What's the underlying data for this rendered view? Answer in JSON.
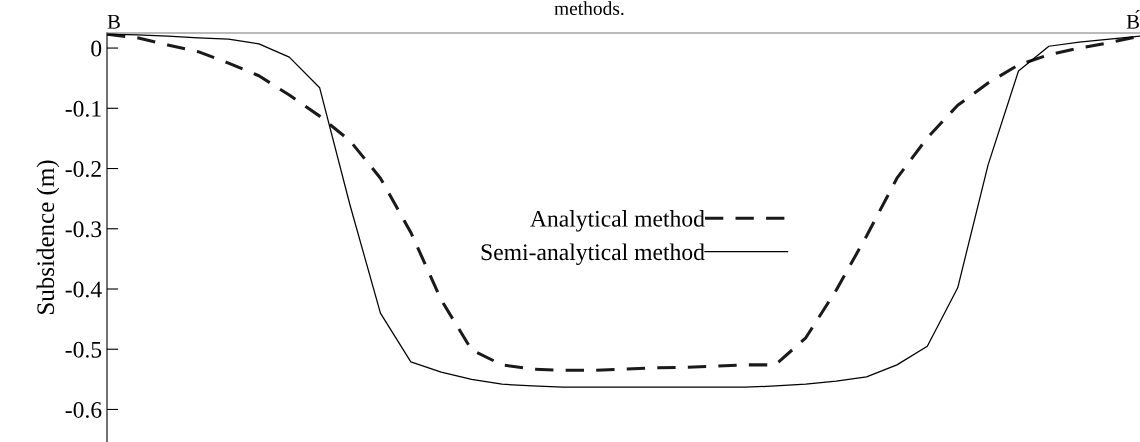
{
  "chart_data": {
    "type": "line",
    "title": "methods.",
    "ylabel": "Subsidence (m)",
    "categories": [
      null,
      null,
      null,
      null,
      null,
      null,
      null,
      null,
      null,
      null,
      null,
      null,
      null,
      null,
      null,
      null,
      null,
      null,
      null,
      null,
      null,
      null,
      null,
      null,
      null,
      null,
      null,
      null,
      null,
      null,
      null,
      null,
      null,
      null,
      null
    ],
    "series": [
      {
        "name": "Analytical method",
        "color": "#1a1a1a",
        "line_style": "dashed",
        "values": [
          0.023,
          0.017,
          0.005,
          -0.006,
          -0.025,
          -0.046,
          -0.078,
          -0.113,
          -0.154,
          -0.216,
          -0.306,
          -0.418,
          -0.501,
          -0.526,
          -0.533,
          -0.535,
          -0.535,
          -0.533,
          -0.531,
          -0.53,
          -0.528,
          -0.526,
          -0.526,
          -0.481,
          -0.402,
          -0.312,
          -0.216,
          -0.149,
          -0.095,
          -0.058,
          -0.028,
          -0.011,
          0.0,
          0.009,
          0.02
        ]
      },
      {
        "name": "Semi-analytical method",
        "color": "#000000",
        "line_style": "solid",
        "values": [
          0.023,
          0.022,
          0.02,
          0.017,
          0.015,
          0.007,
          -0.015,
          -0.066,
          -0.261,
          -0.44,
          -0.521,
          -0.538,
          -0.55,
          -0.558,
          -0.561,
          -0.563,
          -0.563,
          -0.563,
          -0.563,
          -0.563,
          -0.563,
          -0.563,
          -0.561,
          -0.558,
          -0.553,
          -0.546,
          -0.526,
          -0.495,
          -0.398,
          -0.194,
          -0.038,
          0.003,
          0.01,
          0.015,
          0.02
        ]
      }
    ],
    "ylim": [
      -0.654,
      0.025
    ],
    "yticks": [
      0,
      {
        "value": -0.1,
        "label": "-0.1"
      },
      {
        "value": -0.2,
        "label": "-0.2"
      },
      {
        "value": -0.3,
        "label": "-0.3"
      },
      {
        "value": -0.4,
        "label": "-0.4"
      },
      {
        "value": -0.5,
        "label": "-0.5"
      },
      {
        "value": -0.6,
        "label": "-0.6"
      }
    ],
    "tick_labels": "y",
    "grid": false,
    "legend": "center",
    "marker": "none",
    "annotations": [
      "B",
      "B́"
    ]
  }
}
